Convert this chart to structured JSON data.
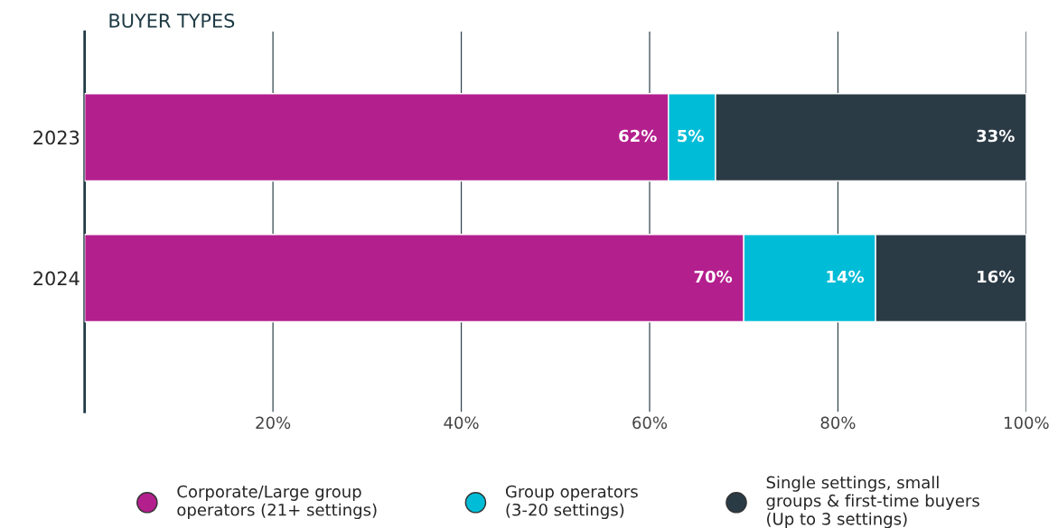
{
  "chart_data": {
    "type": "bar",
    "orientation": "horizontal",
    "stacked": true,
    "title": "BUYER TYPES",
    "categories": [
      "2023",
      "2024"
    ],
    "series": [
      {
        "name": "Corporate/Large group\noperators (21+ settings)",
        "color": "#b41f8e",
        "values": [
          62,
          70
        ],
        "value_labels": [
          "62%",
          "70%"
        ]
      },
      {
        "name": "Group operators\n(3-20 settings)",
        "color": "#00bcd6",
        "values": [
          5,
          14
        ],
        "value_labels": [
          "5%",
          "14%"
        ]
      },
      {
        "name": "Single settings, small\ngroups & first-time buyers\n(Up to 3 settings)",
        "color": "#2b3b46",
        "values": [
          33,
          16
        ],
        "value_labels": [
          "33%",
          "16%"
        ]
      }
    ],
    "xlim": [
      0,
      100
    ],
    "xticks": [
      {
        "value": 20,
        "label": "20%"
      },
      {
        "value": 40,
        "label": "40%"
      },
      {
        "value": 60,
        "label": "60%"
      },
      {
        "value": 80,
        "label": "80%"
      },
      {
        "value": 100,
        "label": "100%"
      }
    ],
    "grid": "x",
    "legend": "bottom"
  }
}
